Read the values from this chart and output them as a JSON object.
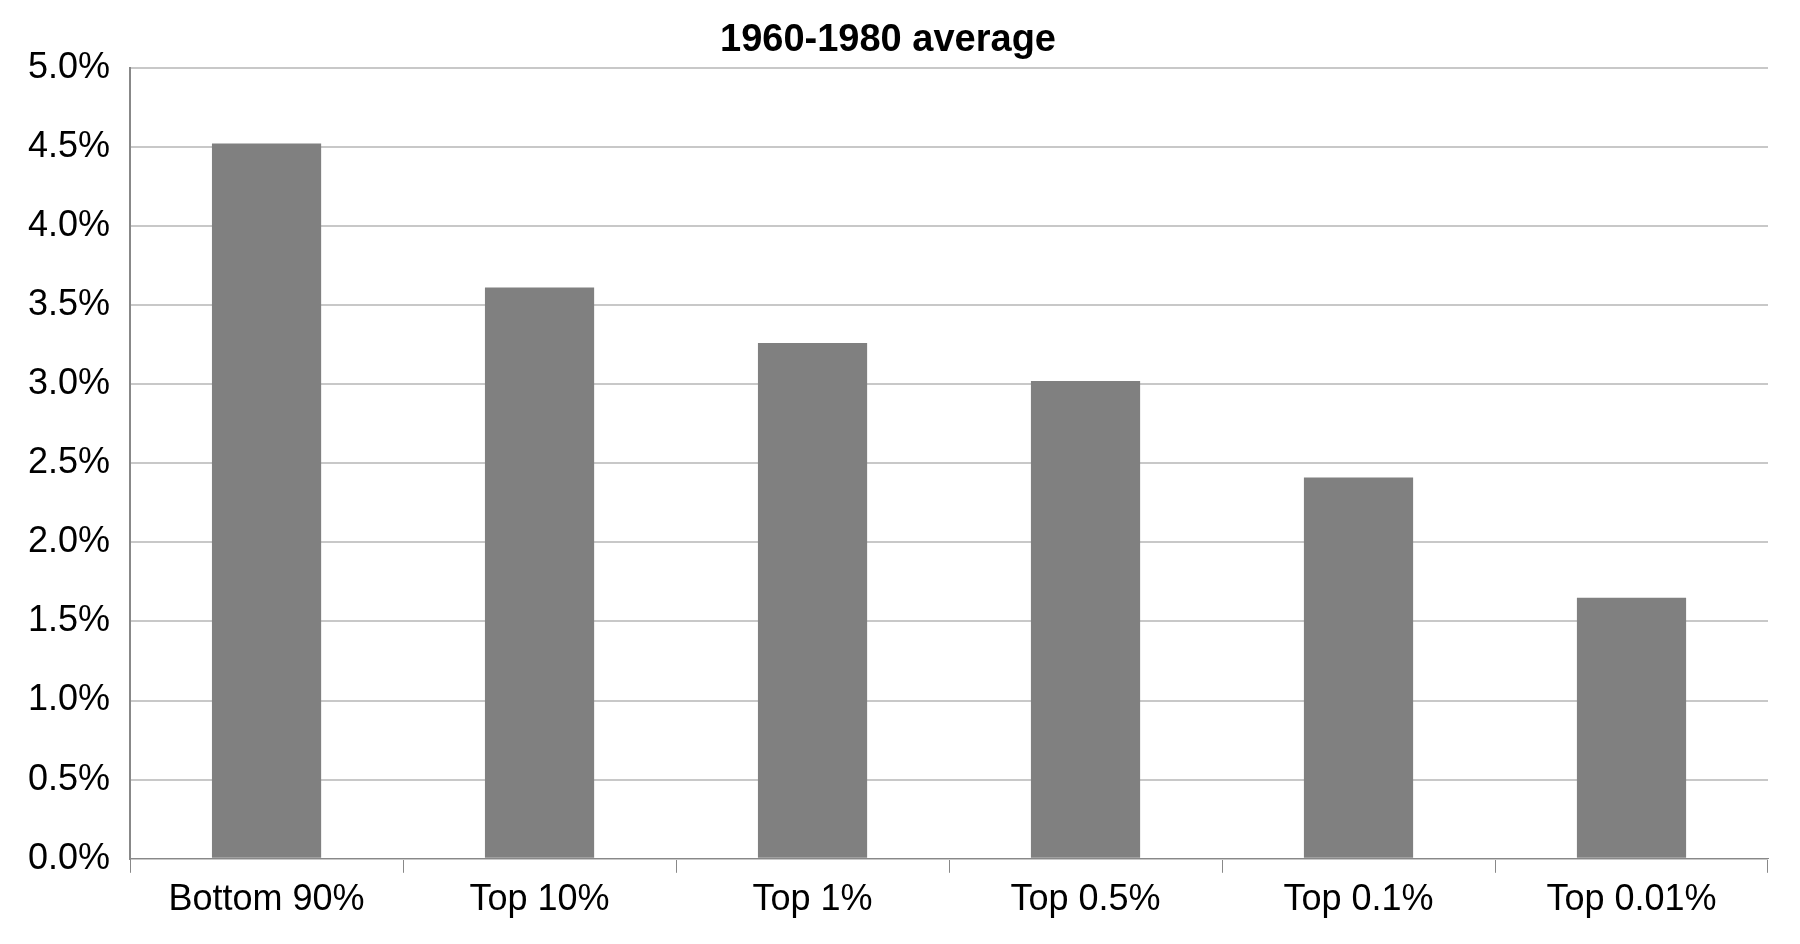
{
  "chart_data": {
    "type": "bar",
    "title": "1960-1980 average",
    "categories": [
      "Bottom 90%",
      "Top 10%",
      "Top 1%",
      "Top 0.5%",
      "Top 0.1%",
      "Top 0.01%"
    ],
    "values": [
      4.52,
      3.61,
      3.26,
      3.02,
      2.41,
      1.65
    ],
    "color": "#808080",
    "ylim": [
      0,
      5
    ],
    "yticks": [
      {
        "value": 0,
        "label": "0.0%"
      },
      {
        "value": 0.5,
        "label": "0.5%"
      },
      {
        "value": 1,
        "label": "1.0%"
      },
      {
        "value": 1.5,
        "label": "1.5%"
      },
      {
        "value": 2,
        "label": "2.0%"
      },
      {
        "value": 2.5,
        "label": "2.5%"
      },
      {
        "value": 3,
        "label": "3.0%"
      },
      {
        "value": 3.5,
        "label": "3.5%"
      },
      {
        "value": 4,
        "label": "4.0%"
      },
      {
        "value": 4.5,
        "label": "4.5%"
      },
      {
        "value": 5,
        "label": "5.0%"
      }
    ],
    "grid": "y"
  }
}
